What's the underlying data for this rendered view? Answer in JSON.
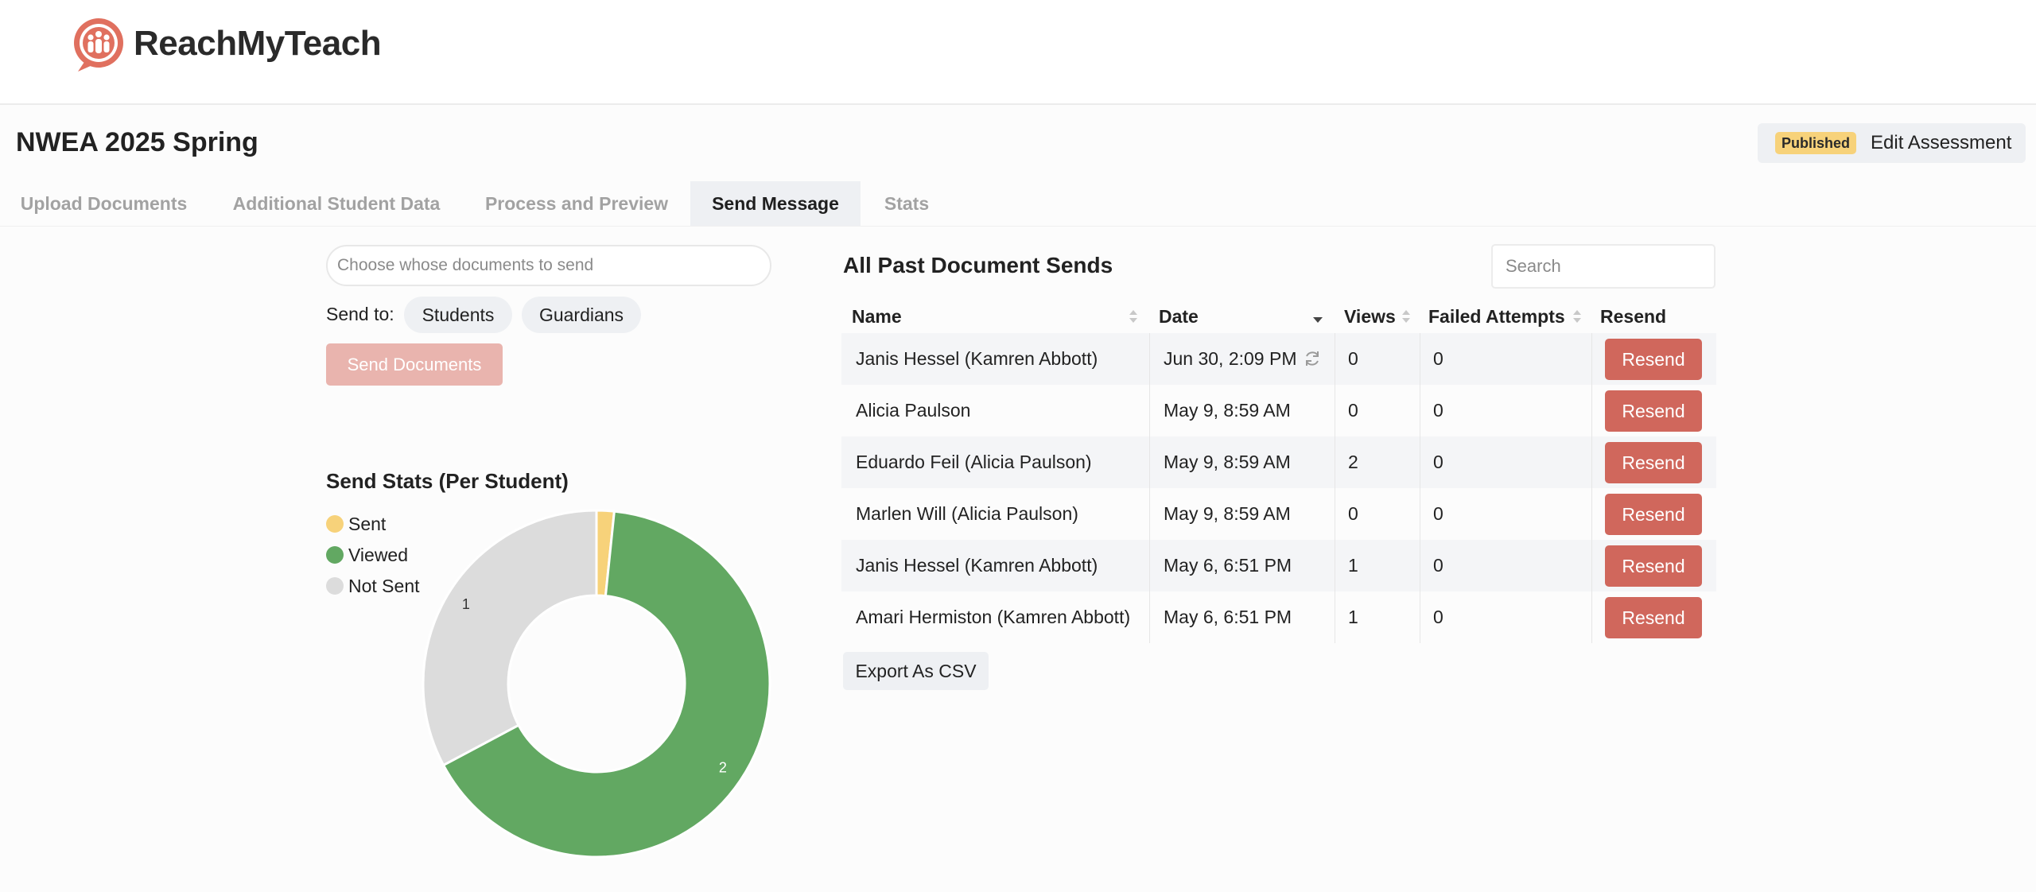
{
  "app": {
    "name": "ReachMyTeach"
  },
  "page": {
    "title": "NWEA 2025 Spring",
    "status_badge": "Published",
    "edit_label": "Edit Assessment"
  },
  "tabs": [
    {
      "label": "Upload Documents"
    },
    {
      "label": "Additional Student Data"
    },
    {
      "label": "Process and Preview"
    },
    {
      "label": "Send Message",
      "active": true
    },
    {
      "label": "Stats"
    }
  ],
  "send_form": {
    "recipient_placeholder": "Choose whose documents to send",
    "send_to_label": "Send to:",
    "options": [
      "Students",
      "Guardians"
    ],
    "send_button": "Send Documents"
  },
  "send_stats": {
    "title": "Send Stats (Per Student)",
    "legend": [
      {
        "label": "Sent",
        "color": "#f7d27a"
      },
      {
        "label": "Viewed",
        "color": "#62a862"
      },
      {
        "label": "Not Sent",
        "color": "#dcdcdc"
      }
    ]
  },
  "chart_data": {
    "type": "pie",
    "title": "Send Stats (Per Student)",
    "categories": [
      "Sent",
      "Viewed",
      "Not Sent"
    ],
    "values": [
      0.05,
      2,
      1
    ],
    "data_labels": [
      "",
      "2",
      "1"
    ],
    "colors": [
      "#f7d27a",
      "#62a862",
      "#dcdcdc"
    ],
    "donut": true,
    "legend_position": "left"
  },
  "sends_table": {
    "title": "All Past Document Sends",
    "search_placeholder": "Search",
    "columns": [
      "Name",
      "Date",
      "Views",
      "Failed Attempts",
      "Resend"
    ],
    "rows": [
      {
        "name": "Janis Hessel (Kamren Abbott)",
        "date": "Jun 30, 2:09 PM",
        "views": "0",
        "failed": "0",
        "resend": "Resend",
        "refresh_icon": true
      },
      {
        "name": "Alicia Paulson",
        "date": "May 9, 8:59 AM",
        "views": "0",
        "failed": "0",
        "resend": "Resend"
      },
      {
        "name": "Eduardo Feil (Alicia Paulson)",
        "date": "May 9, 8:59 AM",
        "views": "2",
        "failed": "0",
        "resend": "Resend"
      },
      {
        "name": "Marlen Will (Alicia Paulson)",
        "date": "May 9, 8:59 AM",
        "views": "0",
        "failed": "0",
        "resend": "Resend"
      },
      {
        "name": "Janis Hessel (Kamren Abbott)",
        "date": "May 6, 6:51 PM",
        "views": "1",
        "failed": "0",
        "resend": "Resend"
      },
      {
        "name": "Amari Hermiston (Kamren Abbott)",
        "date": "May 6, 6:51 PM",
        "views": "1",
        "failed": "0",
        "resend": "Resend"
      }
    ],
    "export_label": "Export As CSV"
  }
}
